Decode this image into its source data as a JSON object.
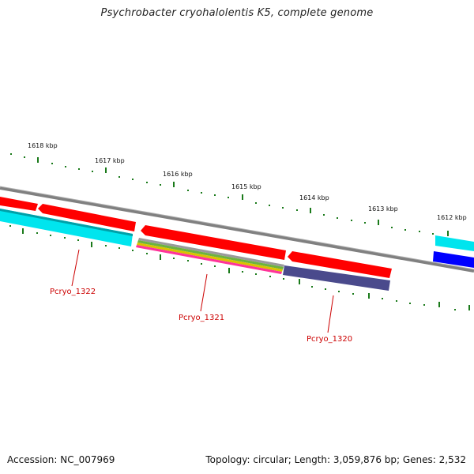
{
  "title": "Psychrobacter cryohalolentis K5, complete genome",
  "footer": {
    "accession": "Accession: NC_007969",
    "summary": "Topology: circular; Length: 3,059,876 bp; Genes: 2,532"
  },
  "ticks": [
    {
      "label": "1618 kbp"
    },
    {
      "label": "1617 kbp"
    },
    {
      "label": "1616 kbp"
    },
    {
      "label": "1615 kbp"
    },
    {
      "label": "1614 kbp"
    },
    {
      "label": "1613 kbp"
    },
    {
      "label": "1612 kbp"
    }
  ],
  "genes": [
    {
      "label": "Pcryo_1322"
    },
    {
      "label": "Pcryo_1321"
    },
    {
      "label": "Pcryo_1320"
    }
  ],
  "colors": {
    "backbone": "#808080",
    "cds": "#ff0000",
    "cyan": "#00e5ee",
    "blue": "#0000ff",
    "purple": "#4a4a8c",
    "tick": "#1a7a1a",
    "label": "#cc0000"
  }
}
